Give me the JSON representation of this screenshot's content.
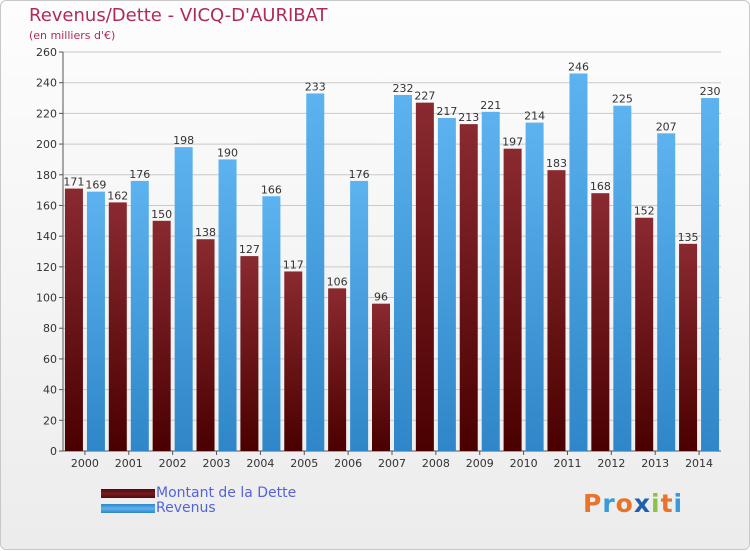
{
  "title": "Revenus/Dette - VICQ-D'AURIBAT",
  "subtitle": "(en milliers d'€)",
  "logo": {
    "text": "Proxiti",
    "colors": [
      "#e8732a",
      "#3a9ad9",
      "#e8732a",
      "#1f5fae",
      "#8bc34a",
      "#e8732a",
      "#3a9ad9"
    ]
  },
  "colors": {
    "dette": "#7a1a1f",
    "revenus": "#4aa2e2",
    "title": "#b02a5a",
    "legend_text": "#5563d8"
  },
  "legend": [
    {
      "label": "Montant de la Dette",
      "color": "#7a1a1f"
    },
    {
      "label": "Revenus",
      "color": "#4aa2e2"
    }
  ],
  "chart_data": {
    "type": "bar",
    "title": "Revenus/Dette - VICQ-D'AURIBAT",
    "subtitle": "(en milliers d'€)",
    "categories": [
      "2000",
      "2001",
      "2002",
      "2003",
      "2004",
      "2005",
      "2006",
      "2007",
      "2008",
      "2009",
      "2010",
      "2011",
      "2012",
      "2013",
      "2014"
    ],
    "series": [
      {
        "name": "Montant de la Dette",
        "values": [
          171,
          162,
          150,
          138,
          127,
          117,
          106,
          96,
          227,
          213,
          197,
          183,
          168,
          152,
          135
        ]
      },
      {
        "name": "Revenus",
        "values": [
          169,
          176,
          198,
          190,
          166,
          233,
          176,
          232,
          217,
          221,
          214,
          246,
          225,
          207,
          230
        ]
      }
    ],
    "ylim": [
      0,
      260
    ],
    "yticks": [
      0,
      20,
      40,
      60,
      80,
      100,
      120,
      140,
      160,
      180,
      200,
      220,
      240,
      260
    ],
    "grid": true,
    "legend_position": "bottom-left"
  }
}
